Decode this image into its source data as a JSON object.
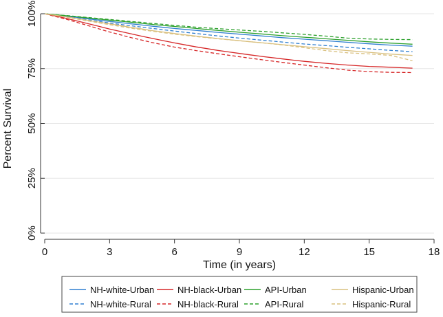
{
  "chart_data": {
    "type": "line",
    "title": "",
    "xlabel": "Time (in years)",
    "ylabel": "Percent Survival",
    "xlim": [
      0,
      18
    ],
    "ylim": [
      0,
      100
    ],
    "x_ticks": [
      {
        "value": 0,
        "label": "0"
      },
      {
        "value": 3,
        "label": "3"
      },
      {
        "value": 6,
        "label": "6"
      },
      {
        "value": 9,
        "label": "9"
      },
      {
        "value": 12,
        "label": "12"
      },
      {
        "value": 15,
        "label": "15"
      },
      {
        "value": 18,
        "label": "18"
      }
    ],
    "y_ticks": [
      {
        "value": 0,
        "label": "0%"
      },
      {
        "value": 25,
        "label": "25%"
      },
      {
        "value": 50,
        "label": "50%"
      },
      {
        "value": 75,
        "label": "75%"
      },
      {
        "value": 100,
        "label": "100%"
      }
    ],
    "grid": true,
    "legend_position": "bottom",
    "series": [
      {
        "name": "NH-white-Urban",
        "color": "#2f7fd0",
        "dash": "solid",
        "x": [
          0,
          1,
          2,
          3,
          4,
          5,
          6,
          7,
          8,
          9,
          10,
          11,
          12,
          13,
          14,
          15,
          16,
          17
        ],
        "values": [
          100,
          98.9,
          97.7,
          96.5,
          95.4,
          94.3,
          93.3,
          92.4,
          91.5,
          90.7,
          89.9,
          89.1,
          88.4,
          87.7,
          87.0,
          86.3,
          85.7,
          85.2
        ]
      },
      {
        "name": "NH-white-Rural",
        "color": "#2f7fd0",
        "dash": "dashed",
        "x": [
          0,
          1,
          2,
          3,
          4,
          5,
          6,
          7,
          8,
          9,
          10,
          11,
          12,
          13,
          14,
          15,
          16,
          17
        ],
        "values": [
          100,
          98.6,
          97.2,
          95.8,
          94.5,
          93.3,
          92.1,
          91.0,
          89.9,
          88.9,
          88.0,
          87.1,
          86.2,
          85.5,
          84.7,
          84.0,
          83.3,
          82.7
        ]
      },
      {
        "name": "NH-black-Urban",
        "color": "#d62728",
        "dash": "solid",
        "x": [
          0,
          1,
          2,
          3,
          4,
          5,
          6,
          7,
          8,
          9,
          10,
          11,
          12,
          13,
          14,
          15,
          16,
          17
        ],
        "values": [
          100,
          97.9,
          95.5,
          93.0,
          90.8,
          88.7,
          86.7,
          84.9,
          83.3,
          81.9,
          80.6,
          79.4,
          78.3,
          77.4,
          76.6,
          76.0,
          75.6,
          75.2
        ]
      },
      {
        "name": "NH-black-Rural",
        "color": "#d62728",
        "dash": "dashed",
        "x": [
          0,
          1,
          2,
          3,
          4,
          5,
          6,
          7,
          8,
          9,
          10,
          11,
          12,
          13,
          14,
          15,
          16,
          17
        ],
        "values": [
          100,
          97.5,
          94.6,
          91.7,
          89.1,
          86.8,
          84.8,
          83.2,
          81.8,
          80.4,
          79.1,
          77.8,
          76.6,
          75.4,
          74.3,
          73.6,
          73.3,
          73.2
        ]
      },
      {
        "name": "API-Urban",
        "color": "#2ca02c",
        "dash": "solid",
        "x": [
          0,
          1,
          2,
          3,
          4,
          5,
          6,
          7,
          8,
          9,
          10,
          11,
          12,
          13,
          14,
          15,
          16,
          17
        ],
        "values": [
          100,
          99.1,
          98.1,
          97.1,
          96.1,
          95.1,
          94.2,
          93.3,
          92.4,
          91.6,
          90.8,
          90.0,
          89.3,
          88.6,
          87.9,
          87.2,
          86.6,
          86.1
        ]
      },
      {
        "name": "API-Rural",
        "color": "#2ca02c",
        "dash": "dashed",
        "x": [
          0,
          1,
          2,
          3,
          4,
          5,
          6,
          7,
          8,
          9,
          10,
          11,
          12,
          13,
          14,
          15,
          16,
          17
        ],
        "values": [
          100,
          99.2,
          98.3,
          97.4,
          96.5,
          95.6,
          94.7,
          93.9,
          93.2,
          92.6,
          92.0,
          91.3,
          90.6,
          89.8,
          88.9,
          88.5,
          88.3,
          88.2
        ]
      },
      {
        "name": "Hispanic-Urban",
        "color": "#d9c07f",
        "dash": "solid",
        "x": [
          0,
          1,
          2,
          3,
          4,
          5,
          6,
          7,
          8,
          9,
          10,
          11,
          12,
          13,
          14,
          15,
          16,
          17
        ],
        "values": [
          100,
          98.6,
          97.0,
          95.4,
          93.8,
          92.3,
          91.0,
          89.8,
          88.7,
          87.7,
          86.8,
          85.9,
          85.0,
          84.1,
          83.2,
          82.4,
          81.6,
          81.0
        ]
      },
      {
        "name": "Hispanic-Rural",
        "color": "#d9c07f",
        "dash": "dashed",
        "x": [
          0,
          1,
          2,
          3,
          4,
          5,
          6,
          7,
          8,
          9,
          10,
          11,
          12,
          13,
          14,
          15,
          16,
          17
        ],
        "values": [
          100,
          98.4,
          96.7,
          95.0,
          93.4,
          92.0,
          90.7,
          89.6,
          88.6,
          87.7,
          86.8,
          85.8,
          84.5,
          83.2,
          82.2,
          81.7,
          81.0,
          78.6
        ]
      }
    ],
    "legend_order": [
      0,
      2,
      4,
      6,
      1,
      3,
      5,
      7
    ]
  }
}
